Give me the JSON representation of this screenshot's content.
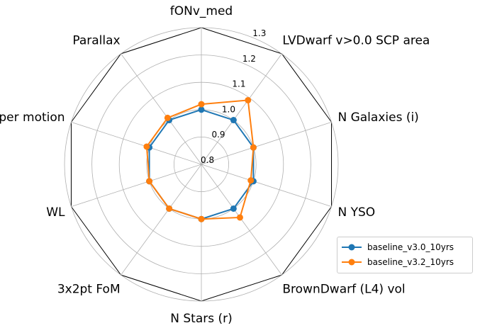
{
  "chart_data": {
    "type": "radar",
    "axes": [
      "fONv_med",
      "LVDwarf v>0.0 SCP area",
      "N Galaxies (i)",
      "N YSO",
      "BrownDwarf (L4) vol",
      "N Stars (r)",
      "3x2pt FoM",
      "WL",
      "Proper motion",
      "Parallax"
    ],
    "rlim": [
      0.8,
      1.3
    ],
    "rticks": [
      "0.8",
      "0.9",
      "1.0",
      "1.1",
      "1.2",
      "1.3"
    ],
    "grid": true,
    "legend_position": "lower-right outside",
    "series": [
      {
        "name": "baseline_v3.0_10yrs",
        "color": "#1f77b4",
        "values": [
          1.0,
          1.0,
          1.0,
          1.0,
          1.0,
          1.0,
          1.0,
          1.0,
          1.0,
          1.0
        ]
      },
      {
        "name": "baseline_v3.2_10yrs",
        "color": "#ff7f0e",
        "values": [
          1.02,
          1.09,
          1.0,
          0.99,
          1.04,
          1.0,
          1.0,
          1.0,
          1.01,
          1.01
        ]
      }
    ]
  }
}
